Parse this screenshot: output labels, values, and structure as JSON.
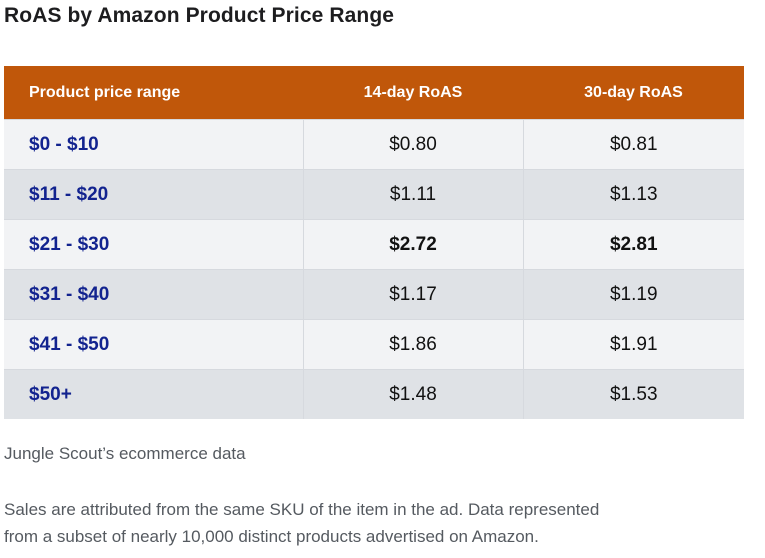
{
  "title": "RoAS by Amazon Product Price Range",
  "table": {
    "headers": [
      "Product price range",
      "14-day RoAS",
      "30-day RoAS"
    ],
    "rows": [
      {
        "range": "$0 - $10",
        "roas14": "$0.80",
        "roas30": "$0.81",
        "highlight": false
      },
      {
        "range": "$11 - $20",
        "roas14": "$1.11",
        "roas30": "$1.13",
        "highlight": false
      },
      {
        "range": "$21 - $30",
        "roas14": "$2.72",
        "roas30": "$2.81",
        "highlight": true
      },
      {
        "range": "$31 - $40",
        "roas14": "$1.17",
        "roas30": "$1.19",
        "highlight": false
      },
      {
        "range": "$41 - $50",
        "roas14": "$1.86",
        "roas30": "$1.91",
        "highlight": false
      },
      {
        "range": "$50+",
        "roas14": "$1.48",
        "roas30": "$1.53",
        "highlight": false
      }
    ]
  },
  "source": "Jungle Scout’s ecommerce data",
  "note_line1": "Sales are attributed from the same SKU of the item in the ad. Data represented",
  "note_line2": "from a subset of nearly 10,000 distinct products advertised on Amazon.",
  "colors": {
    "header_bg": "#c0570a",
    "range_text": "#12238f",
    "row_light": "#f2f3f5",
    "row_dark": "#dfe2e6"
  }
}
